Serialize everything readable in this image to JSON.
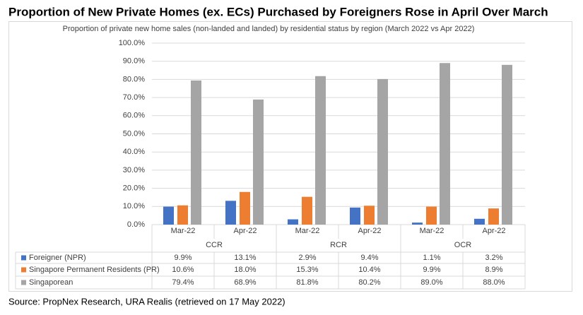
{
  "chart_data": {
    "type": "bar",
    "title": "Proportion of New Private Homes (ex. ECs) Purchased by Foreigners Rose in April Over March",
    "subtitle": "Proportion of private new home sales (non-landed and landed) by residential status by region (March 2022 vs Apr 2022)",
    "source": "Source: PropNex Research, URA Realis (retrieved on 17 May 2022)",
    "groups": [
      {
        "name": "CCR",
        "categories": [
          "Mar-22",
          "Apr-22"
        ]
      },
      {
        "name": "RCR",
        "categories": [
          "Mar-22",
          "Apr-22"
        ]
      },
      {
        "name": "OCR",
        "categories": [
          "Mar-22",
          "Apr-22"
        ]
      }
    ],
    "series": [
      {
        "name": "Foreigner (NPR)",
        "color": "#4472c4",
        "values": [
          9.9,
          13.1,
          2.9,
          9.4,
          1.1,
          3.2
        ],
        "value_labels": [
          "9.9%",
          "13.1%",
          "2.9%",
          "9.4%",
          "1.1%",
          "3.2%"
        ]
      },
      {
        "name": "Singapore Permanent Residents (PR)",
        "color": "#ed7d31",
        "values": [
          10.6,
          18.0,
          15.3,
          10.4,
          9.9,
          8.9
        ],
        "value_labels": [
          "10.6%",
          "18.0%",
          "15.3%",
          "10.4%",
          "9.9%",
          "8.9%"
        ]
      },
      {
        "name": "Singaporean",
        "color": "#a5a5a5",
        "values": [
          79.4,
          68.9,
          81.8,
          80.2,
          89.0,
          88.0
        ],
        "value_labels": [
          "79.4%",
          "68.9%",
          "81.8%",
          "80.2%",
          "89.0%",
          "88.0%"
        ]
      }
    ],
    "ylim": [
      0,
      100
    ],
    "yticks": [
      {
        "value": 0,
        "label": "0.0%"
      },
      {
        "value": 10,
        "label": "10.0%"
      },
      {
        "value": 20,
        "label": "20.0%"
      },
      {
        "value": 30,
        "label": "30.0%"
      },
      {
        "value": 40,
        "label": "40.0%"
      },
      {
        "value": 50,
        "label": "50.0%"
      },
      {
        "value": 60,
        "label": "60.0%"
      },
      {
        "value": 70,
        "label": "70.0%"
      },
      {
        "value": 80,
        "label": "80.0%"
      },
      {
        "value": 90,
        "label": "90.0%"
      },
      {
        "value": 100,
        "label": "100.0%"
      }
    ],
    "grid": true
  }
}
